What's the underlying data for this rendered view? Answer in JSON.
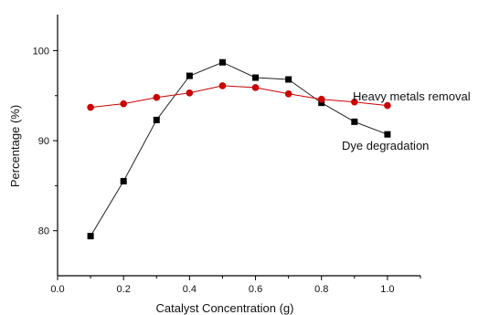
{
  "chart_data": {
    "type": "line",
    "title": "",
    "xlabel": "Catalyst Concentration (g)",
    "ylabel": "Percentage (%)",
    "xlim": [
      0.0,
      1.1
    ],
    "ylim": [
      75,
      104
    ],
    "x_ticks": [
      0.0,
      0.2,
      0.4,
      0.6,
      0.8,
      1.0
    ],
    "y_ticks": [
      80,
      90,
      100
    ],
    "x_tick_labels": [
      "0.0",
      "0.2",
      "0.4",
      "0.6",
      "0.8",
      "1.0"
    ],
    "y_tick_labels": [
      "80",
      "90",
      "100"
    ],
    "grid": false,
    "series": [
      {
        "name": "Dye degradation",
        "color": "#000000",
        "marker": "square",
        "x": [
          0.1,
          0.2,
          0.3,
          0.4,
          0.5,
          0.6,
          0.7,
          0.8,
          0.9,
          1.0
        ],
        "values": [
          79.4,
          85.5,
          92.3,
          97.2,
          98.7,
          97.0,
          96.8,
          94.2,
          92.1,
          90.7
        ]
      },
      {
        "name": "Heavy metals removal",
        "color": "#cc0000",
        "marker": "circle",
        "x": [
          0.1,
          0.2,
          0.3,
          0.4,
          0.5,
          0.6,
          0.7,
          0.8,
          0.9,
          1.0
        ],
        "values": [
          93.7,
          94.1,
          94.8,
          95.3,
          96.1,
          95.9,
          95.2,
          94.6,
          94.3,
          93.9
        ]
      }
    ]
  }
}
